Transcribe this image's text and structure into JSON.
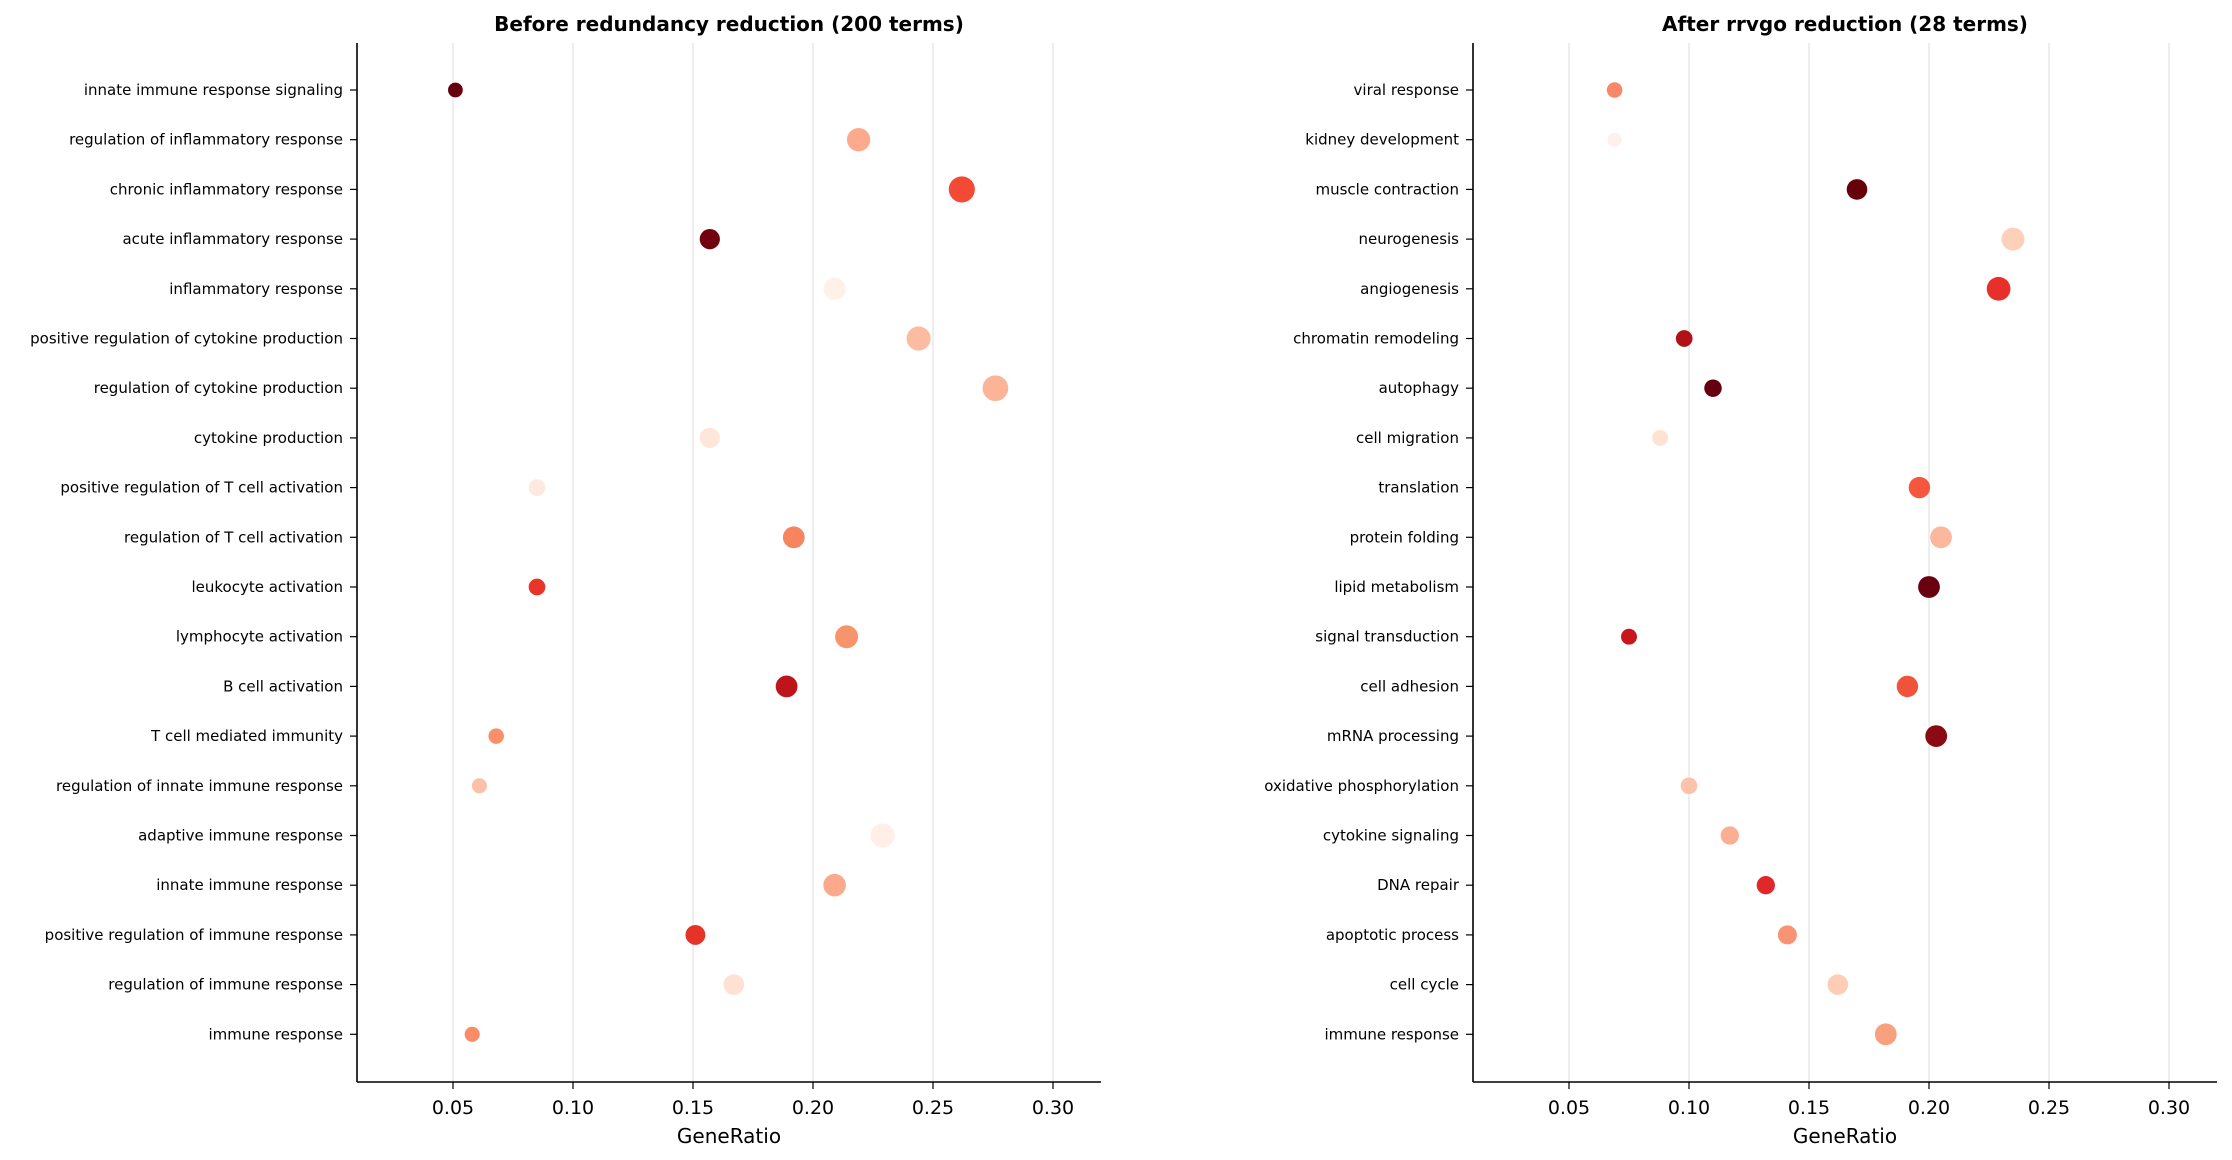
{
  "chart_data": [
    {
      "type": "scatter",
      "title": "Before redundancy reduction (200 terms)",
      "xlabel": "GeneRatio",
      "ylabel": "",
      "xlim": [
        0.01,
        0.32
      ],
      "xticks": [
        "0.05",
        "0.10",
        "0.15",
        "0.20",
        "0.25",
        "0.30"
      ],
      "grid": "vertical",
      "colormap": "Reds",
      "categories": [
        "innate immune response signaling",
        "regulation of inflammatory response",
        "chronic inflammatory response",
        "acute inflammatory response",
        "inflammatory response",
        "positive regulation of cytokine production",
        "regulation of cytokine production",
        "cytokine production",
        "positive regulation of T cell activation",
        "regulation of T cell activation",
        "leukocyte activation",
        "lymphocyte activation",
        "B cell activation",
        "T cell mediated immunity",
        "regulation of innate immune response",
        "adaptive immune response",
        "innate immune response",
        "positive regulation of immune response",
        "regulation of immune response",
        "immune response"
      ],
      "x": [
        0.051,
        0.219,
        0.262,
        0.157,
        0.209,
        0.244,
        0.276,
        0.157,
        0.085,
        0.192,
        0.085,
        0.214,
        0.189,
        0.068,
        0.061,
        0.229,
        0.209,
        0.151,
        0.167,
        0.058
      ],
      "sizes": [
        0.14,
        0.58,
        0.72,
        0.42,
        0.52,
        0.62,
        0.7,
        0.42,
        0.24,
        0.5,
        0.24,
        0.56,
        0.5,
        0.18,
        0.16,
        0.62,
        0.54,
        0.4,
        0.44,
        0.16
      ],
      "colors": [
        "#67000d",
        "#fcaa8e",
        "#f34a36",
        "#71020e",
        "#fff0e8",
        "#fcbca2",
        "#fcb499",
        "#fee6da",
        "#fee9df",
        "#f6855f",
        "#e83429",
        "#f8946c",
        "#bd151b",
        "#f9906a",
        "#fcbfa8",
        "#ffefe7",
        "#fba98c",
        "#e63328",
        "#fee1d3",
        "#f98c68"
      ]
    },
    {
      "type": "scatter",
      "title": "After rrvgo reduction (28 terms)",
      "xlabel": "GeneRatio",
      "ylabel": "",
      "xlim": [
        0.01,
        0.32
      ],
      "xticks": [
        "0.05",
        "0.10",
        "0.15",
        "0.20",
        "0.25",
        "0.30"
      ],
      "grid": "vertical",
      "colormap": "Reds",
      "categories": [
        "viral response",
        "kidney development",
        "muscle contraction",
        "neurogenesis",
        "angiogenesis",
        "chromatin remodeling",
        "autophagy",
        "cell migration",
        "translation",
        "protein folding",
        "lipid metabolism",
        "signal transduction",
        "cell adhesion",
        "mRNA processing",
        "oxidative phosphorylation",
        "cytokine signaling",
        "DNA repair",
        "apoptotic process",
        "cell cycle",
        "immune response"
      ],
      "x": [
        0.069,
        0.069,
        0.17,
        0.235,
        0.229,
        0.098,
        0.11,
        0.088,
        0.196,
        0.205,
        0.2,
        0.075,
        0.191,
        0.203,
        0.1,
        0.117,
        0.132,
        0.141,
        0.162,
        0.182
      ],
      "sizes": [
        0.18,
        0.12,
        0.44,
        0.56,
        0.6,
        0.24,
        0.28,
        0.2,
        0.48,
        0.5,
        0.5,
        0.2,
        0.48,
        0.5,
        0.24,
        0.32,
        0.32,
        0.36,
        0.44,
        0.5
      ],
      "colors": [
        "#f9886a",
        "#fff0f0",
        "#680009",
        "#fdd0ba",
        "#e8302a",
        "#b11218",
        "#640010",
        "#fee3d3",
        "#f4573d",
        "#fcb89c",
        "#690010",
        "#c8171c",
        "#f0533a",
        "#8a0b14",
        "#fdc2aa",
        "#fcae90",
        "#e0282b",
        "#f89474",
        "#fdcdb6",
        "#f9a07f"
      ]
    }
  ]
}
